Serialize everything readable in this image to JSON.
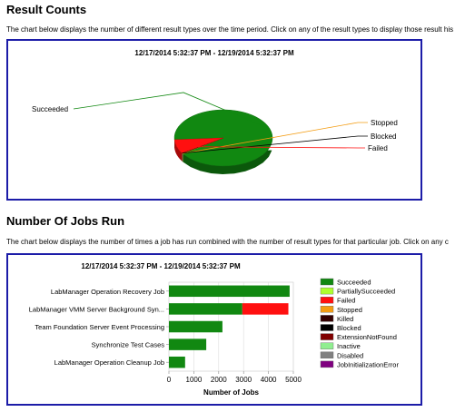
{
  "result_counts": {
    "heading": "Result Counts",
    "description": "The chart below displays the number of different result types over the time period. Click on any of the result types to display those result his",
    "chart_title": "12/17/2014 5:32:37 PM  -  12/19/2014 5:32:37 PM"
  },
  "jobs_run": {
    "heading": "Number Of Jobs Run",
    "description": "The chart below displays the number of times a job has run combined with the number of result types for that particular job. Click on any c",
    "chart_title": "12/17/2014 5:32:37 PM  -  12/19/2014 5:32:37 PM"
  },
  "chart_data": [
    {
      "type": "pie",
      "title": "12/17/2014 5:32:37 PM  -  12/19/2014 5:32:37 PM",
      "slices": [
        {
          "label": "Succeeded",
          "value": 91.5,
          "color": "#118811"
        },
        {
          "label": "Stopped",
          "value": 0.3,
          "color": "#f39c12"
        },
        {
          "label": "Blocked",
          "value": 0.2,
          "color": "#000000"
        },
        {
          "label": "Failed",
          "value": 8.0,
          "color": "#ff1010"
        }
      ]
    },
    {
      "type": "bar",
      "orientation": "horizontal",
      "stacked": true,
      "title": "12/17/2014 5:32:37 PM  -  12/19/2014 5:32:37 PM",
      "xlabel": "Number of Jobs",
      "xlim": [
        0,
        5000
      ],
      "xticks": [
        "0",
        "1000",
        "2000",
        "3000",
        "4000",
        "5000"
      ],
      "grid": true,
      "legend_position": "right",
      "categories": [
        "LabManager Operation Recovery Job",
        "LabManager VMM Server Background Syn...",
        "Team Foundation Server Event Processing",
        "Synchronize Test Cases",
        "LabManager Operation Cleanup Job"
      ],
      "series": [
        {
          "name": "Succeeded",
          "color": "#118811",
          "values": [
            4850,
            2950,
            2150,
            1500,
            650
          ]
        },
        {
          "name": "PartiallySucceeded",
          "color": "#adff2f",
          "values": [
            0,
            0,
            0,
            0,
            0
          ]
        },
        {
          "name": "Failed",
          "color": "#ff1010",
          "values": [
            0,
            1850,
            0,
            0,
            0
          ]
        },
        {
          "name": "Stopped",
          "color": "#f39c12",
          "values": [
            0,
            0,
            0,
            0,
            0
          ]
        },
        {
          "name": "Killed",
          "color": "#330000",
          "values": [
            0,
            0,
            0,
            0,
            0
          ]
        },
        {
          "name": "Blocked",
          "color": "#000000",
          "values": [
            0,
            0,
            0,
            0,
            0
          ]
        },
        {
          "name": "ExtensionNotFound",
          "color": "#800000",
          "values": [
            0,
            0,
            0,
            0,
            0
          ]
        },
        {
          "name": "Inactive",
          "color": "#90ee90",
          "values": [
            0,
            0,
            0,
            0,
            0
          ]
        },
        {
          "name": "Disabled",
          "color": "#808080",
          "values": [
            0,
            0,
            0,
            0,
            0
          ]
        },
        {
          "name": "JobInitializationError",
          "color": "#800080",
          "values": [
            0,
            0,
            0,
            0,
            0
          ]
        }
      ]
    }
  ]
}
